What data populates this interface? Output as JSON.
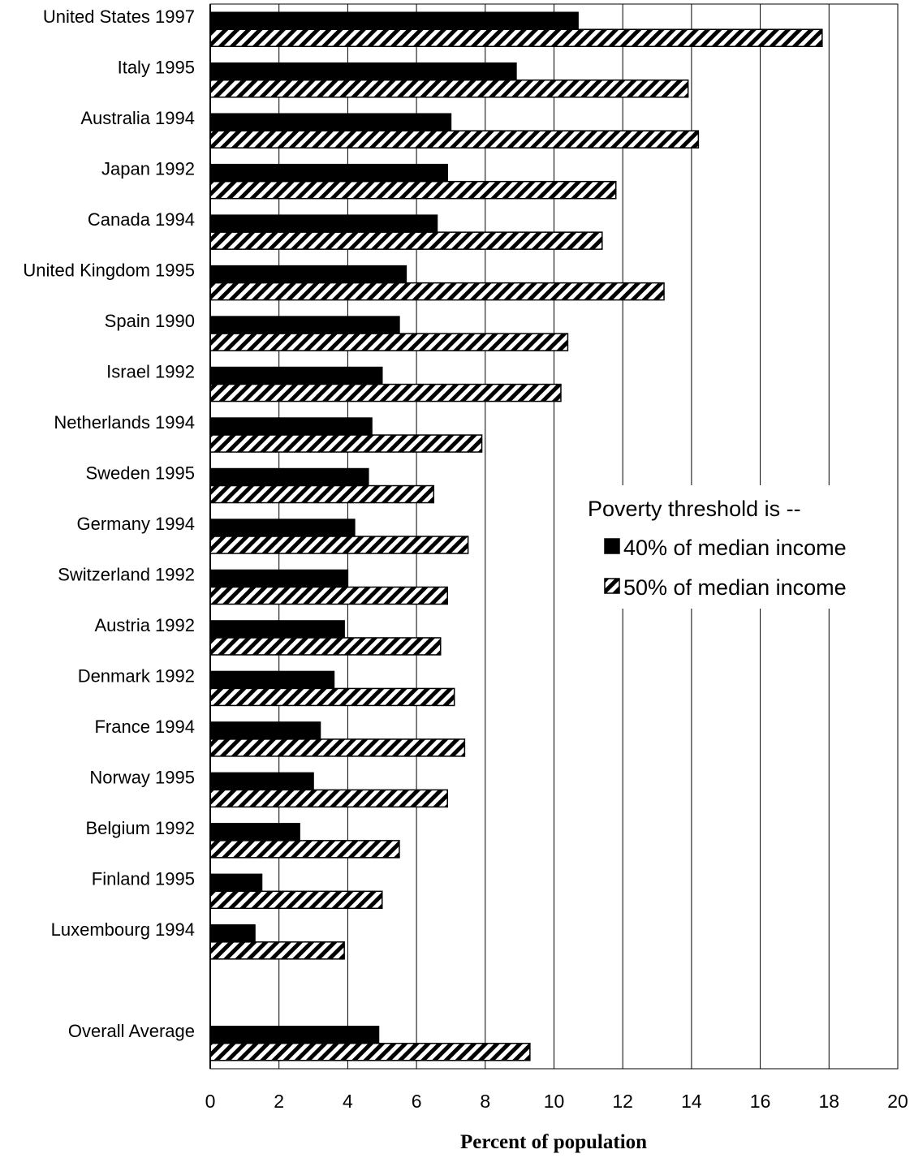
{
  "chart_data": {
    "type": "bar",
    "orientation": "horizontal",
    "categories": [
      "United States 1997",
      "Italy 1995",
      "Australia 1994",
      "Japan 1992",
      "Canada 1994",
      "United Kingdom 1995",
      "Spain 1990",
      "Israel 1992",
      "Netherlands 1994",
      "Sweden 1995",
      "Germany 1994",
      "Switzerland 1992",
      "Austria 1992",
      "Denmark 1992",
      "France 1994",
      "Norway 1995",
      "Belgium 1992",
      "Finland 1995",
      "Luxembourg 1994",
      "",
      "Overall Average"
    ],
    "series": [
      {
        "name": "40% of median income",
        "fill": "solid",
        "values": [
          10.7,
          8.9,
          7.0,
          6.9,
          6.6,
          5.7,
          5.5,
          5.0,
          4.7,
          4.6,
          4.2,
          4.0,
          3.9,
          3.6,
          3.2,
          3.0,
          2.6,
          1.5,
          1.3,
          null,
          4.9
        ]
      },
      {
        "name": "50% of median income",
        "fill": "hatched",
        "values": [
          17.8,
          13.9,
          14.2,
          11.8,
          11.4,
          13.2,
          10.4,
          10.2,
          7.9,
          6.5,
          7.5,
          6.9,
          6.7,
          7.1,
          7.4,
          6.9,
          5.5,
          5.0,
          3.9,
          null,
          9.3
        ]
      }
    ],
    "xlabel": "Percent of population",
    "xlim": [
      0,
      20
    ],
    "xticks": [
      "0",
      "2",
      "4",
      "6",
      "8",
      "10",
      "12",
      "14",
      "16",
      "18",
      "20"
    ],
    "grid": "vertical",
    "legend": {
      "title": "Poverty threshold is --",
      "placement": "right-middle"
    },
    "colors": {
      "solid": "#000000",
      "hatch": "#000000",
      "background": "#ffffff"
    }
  }
}
